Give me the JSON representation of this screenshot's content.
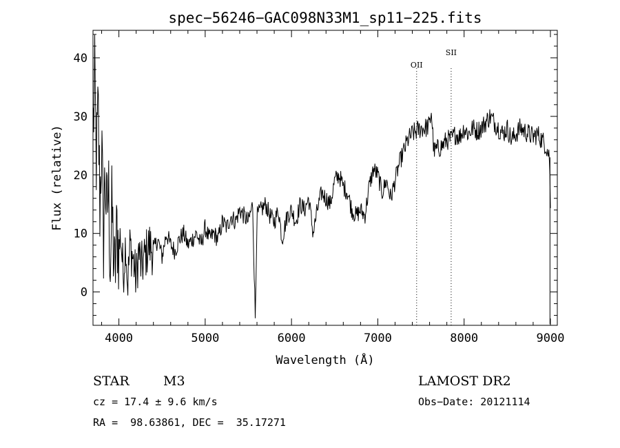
{
  "chart_data": {
    "type": "line",
    "title": "spec−56246−GAC098N33M1_sp11−225.fits",
    "xlabel": "Wavelength (Å)",
    "ylabel": "Flux (relative)",
    "xlim": [
      3700,
      9080
    ],
    "ylim": [
      -5.7,
      44.7
    ],
    "x_ticks": [
      4000,
      5000,
      6000,
      7000,
      8000,
      9000
    ],
    "y_ticks": [
      0,
      10,
      20,
      30,
      40
    ],
    "grid": false,
    "series": [
      {
        "x": [
          3700,
          3720,
          3740,
          3760,
          3780,
          3800,
          3820,
          3840,
          3860,
          3880,
          3900,
          3920,
          3950,
          3980,
          4000,
          4020,
          4050,
          4080,
          4100,
          4130,
          4160,
          4200,
          4230,
          4260,
          4300,
          4350,
          4400,
          4450,
          4500,
          4550,
          4600,
          4650,
          4700,
          4750,
          4800,
          4850,
          4900,
          4950,
          5000,
          5050,
          5100,
          5150,
          5200,
          5250,
          5300,
          5350,
          5400,
          5450,
          5500,
          5550,
          5580,
          5600,
          5650,
          5700,
          5750,
          5800,
          5850,
          5890,
          5950,
          6000,
          6050,
          6100,
          6150,
          6200,
          6250,
          6300,
          6350,
          6400,
          6450,
          6500,
          6550,
          6600,
          6650,
          6700,
          6750,
          6800,
          6850,
          6900,
          6950,
          7000,
          7050,
          7100,
          7150,
          7200,
          7250,
          7300,
          7350,
          7400,
          7450,
          7500,
          7550,
          7600,
          7620,
          7650,
          7700,
          7750,
          7800,
          7850,
          7900,
          7950,
          8000,
          8050,
          8100,
          8150,
          8200,
          8250,
          8300,
          8350,
          8400,
          8450,
          8500,
          8550,
          8600,
          8650,
          8700,
          8750,
          8800,
          8850,
          8900,
          8950,
          8990,
          9000
        ],
        "y": [
          28,
          35,
          22,
          31,
          15,
          26,
          8,
          21,
          12,
          18,
          5,
          14,
          2,
          11,
          7,
          10,
          3,
          9,
          1,
          8,
          6,
          2,
          7,
          4,
          6,
          8,
          7,
          9,
          6,
          10,
          8,
          7,
          9,
          10,
          8,
          9,
          10,
          8,
          11,
          9,
          10,
          9,
          12,
          11,
          13,
          12,
          14,
          13,
          12,
          15,
          -4.5,
          13,
          14,
          15,
          13,
          12,
          14,
          9,
          13,
          14,
          12,
          15,
          14,
          16,
          10,
          14,
          17,
          16,
          15,
          19,
          20,
          18,
          17,
          14,
          13,
          14,
          13,
          18,
          21,
          20,
          17,
          19,
          16,
          19,
          22,
          24,
          26,
          27,
          27.5,
          28,
          28,
          28.5,
          31,
          24,
          24.5,
          25,
          26,
          26,
          27,
          26.5,
          28,
          27,
          28,
          27.5,
          28,
          29,
          30,
          29,
          28,
          27,
          28,
          26,
          27,
          28,
          27.5,
          27,
          26.5,
          27,
          26,
          25,
          23,
          14
        ]
      }
    ],
    "annotations": [
      {
        "label": "OII",
        "x": 7450
      },
      {
        "label": "SII",
        "x": 7850
      }
    ]
  },
  "info": {
    "type_label": "STAR",
    "subclass": "M3",
    "survey": "LAMOST DR2",
    "cz": "cz = 17.4 ± 9.6 km/s",
    "obs_date": "Obs−Date: 20121114",
    "coords": "RA =  98.63861, DEC =  35.17271"
  }
}
